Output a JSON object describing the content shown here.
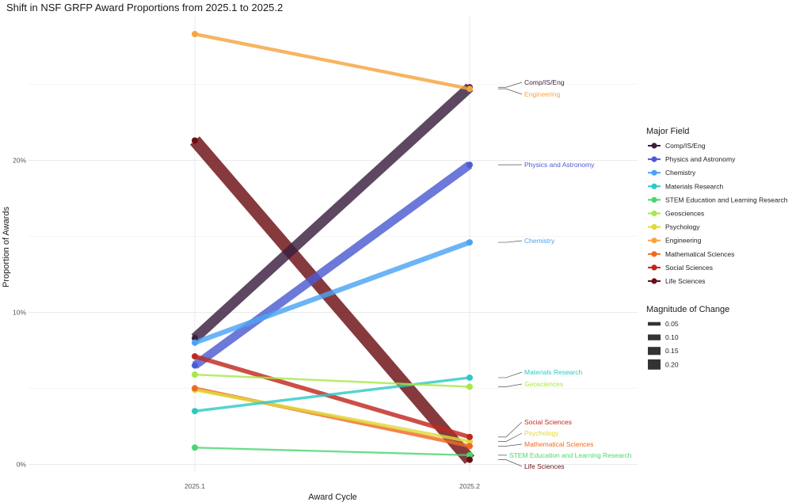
{
  "chart_data": {
    "type": "line",
    "title": "Shift in NSF GRFP Award Proportions from 2025.1 to 2025.2",
    "xlabel": "Award Cycle",
    "ylabel": "Proportion of Awards",
    "categories": [
      "2025.1",
      "2025.2"
    ],
    "ylim": [
      -0.005,
      0.295
    ],
    "yticks": [
      {
        "value": 0.0,
        "label": "0%"
      },
      {
        "value": 0.1,
        "label": "10%"
      },
      {
        "value": 0.2,
        "label": "20%"
      }
    ],
    "series": [
      {
        "name": "Comp/IS/Eng",
        "label": "Comp/IS/Eng",
        "values": [
          0.083,
          0.248
        ],
        "change": 0.165,
        "color": "#3b1f3e"
      },
      {
        "name": "Physics and Astronomy",
        "label": "Physics and Astronomy",
        "values": [
          0.065,
          0.197
        ],
        "change": 0.132,
        "color": "#4d5bd0"
      },
      {
        "name": "Chemistry",
        "label": "Chemistry",
        "values": [
          0.08,
          0.146
        ],
        "change": 0.066,
        "color": "#4aa3f5"
      },
      {
        "name": "Materials Research",
        "label": "Materials Research",
        "values": [
          0.035,
          0.057
        ],
        "change": 0.022,
        "color": "#2fc9c4"
      },
      {
        "name": "STEM Education and Learning Research",
        "label": "STEM Education and Learning Research",
        "values": [
          0.011,
          0.006
        ],
        "change": 0.005,
        "color": "#4bd66f"
      },
      {
        "name": "Geosciences",
        "label": "Geosciences",
        "values": [
          0.059,
          0.051
        ],
        "change": 0.008,
        "color": "#a7e84a"
      },
      {
        "name": "Psychology",
        "label": "Psychology",
        "values": [
          0.049,
          0.015
        ],
        "change": 0.034,
        "color": "#e0d93a"
      },
      {
        "name": "Engineering",
        "label": "Engineering",
        "values": [
          0.283,
          0.247
        ],
        "change": 0.036,
        "color": "#f7a440"
      },
      {
        "name": "Mathematical Sciences",
        "label": "Mathematical Sciences",
        "values": [
          0.05,
          0.012
        ],
        "change": 0.038,
        "color": "#ee6a24"
      },
      {
        "name": "Social Sciences",
        "label": "Social Sciences",
        "values": [
          0.071,
          0.018
        ],
        "change": 0.053,
        "color": "#c0281e"
      },
      {
        "name": "Life Sciences",
        "label": "Life Sciences",
        "values": [
          0.213,
          0.003
        ],
        "change": 0.21,
        "color": "#6b0f12"
      }
    ],
    "legend_color": {
      "title": "Major Field",
      "position": "right",
      "items": [
        {
          "label": "Comp/IS/Eng",
          "color": "#3b1f3e"
        },
        {
          "label": "Physics and Astronomy",
          "color": "#4d5bd0"
        },
        {
          "label": "Chemistry",
          "color": "#4aa3f5"
        },
        {
          "label": "Materials Research",
          "color": "#2fc9c4"
        },
        {
          "label": "STEM Education and Learning Research",
          "color": "#4bd66f"
        },
        {
          "label": "Geosciences",
          "color": "#a7e84a"
        },
        {
          "label": "Psychology",
          "color": "#e0d93a"
        },
        {
          "label": "Engineering",
          "color": "#f7a440"
        },
        {
          "label": "Mathematical Sciences",
          "color": "#ee6a24"
        },
        {
          "label": "Social Sciences",
          "color": "#c0281e"
        },
        {
          "label": "Life Sciences",
          "color": "#6b0f12"
        }
      ]
    },
    "legend_size": {
      "title": "Magnitude of Change",
      "position": "right",
      "items": [
        {
          "label": "0.05",
          "value": 0.05
        },
        {
          "label": "0.10",
          "value": 0.1
        },
        {
          "label": "0.15",
          "value": 0.15
        },
        {
          "label": "0.20",
          "value": 0.2
        }
      ]
    }
  }
}
